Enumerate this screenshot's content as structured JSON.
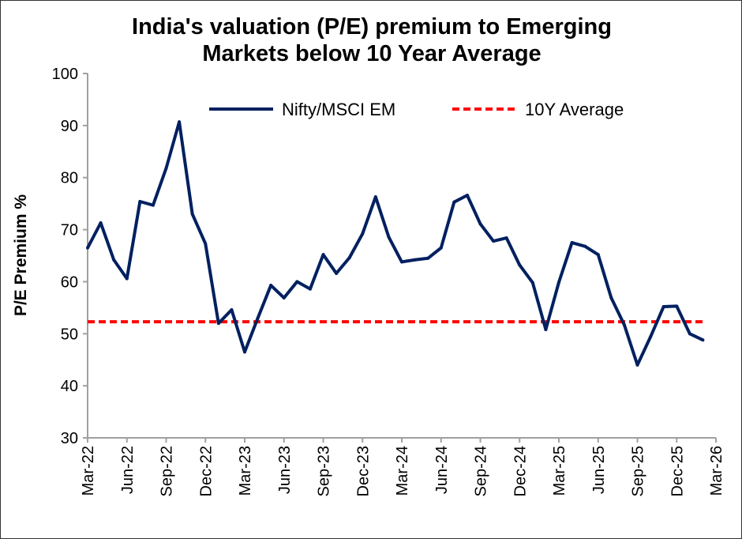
{
  "chart_data": {
    "type": "line",
    "title_lines": [
      "India's valuation (P/E) premium to Emerging",
      "Markets below 10 Year Average"
    ],
    "xlabel": "",
    "ylabel": "P/E Premium %",
    "ylim": [
      30,
      100
    ],
    "yticks": [
      30,
      40,
      50,
      60,
      70,
      80,
      90,
      100
    ],
    "xtick_labels": [
      "Mar-22",
      "Jun-22",
      "Sep-22",
      "Dec-22",
      "Mar-23",
      "Jun-23",
      "Sep-23",
      "Dec-23",
      "Mar-24",
      "Jun-24",
      "Sep-24",
      "Dec-24",
      "Mar-25",
      "Jun-25",
      "Sep-25",
      "Dec-25",
      "Mar-26"
    ],
    "grid": false,
    "legend_position": "top",
    "x": [
      "Mar-22",
      "Apr-22",
      "May-22",
      "Jun-22",
      "Jul-22",
      "Aug-22",
      "Sep-22",
      "Oct-22",
      "Nov-22",
      "Dec-22",
      "Jan-23",
      "Feb-23",
      "Mar-23",
      "Apr-23",
      "May-23",
      "Jun-23",
      "Jul-23",
      "Aug-23",
      "Sep-23",
      "Oct-23",
      "Nov-23",
      "Dec-23",
      "Jan-24",
      "Feb-24",
      "Mar-24",
      "Apr-24",
      "May-24",
      "Jun-24",
      "Jul-24",
      "Aug-24",
      "Sep-24",
      "Oct-24",
      "Nov-24",
      "Dec-24",
      "Jan-25",
      "Feb-25",
      "Mar-25",
      "Apr-25",
      "May-25",
      "Jun-25",
      "Jul-25",
      "Aug-25",
      "Sep-25",
      "Oct-25",
      "Nov-25",
      "Dec-25",
      "Jan-26",
      "Feb-26"
    ],
    "series": [
      {
        "name": "Nifty/MSCI EM",
        "color": "#002060",
        "style": "solid",
        "values": [
          66.5,
          71.3,
          64.2,
          60.6,
          75.4,
          74.7,
          81.8,
          90.7,
          73.0,
          67.3,
          52.0,
          54.6,
          46.5,
          53.0,
          59.3,
          56.9,
          60.0,
          58.6,
          65.2,
          61.6,
          64.6,
          69.2,
          76.3,
          68.6,
          63.8,
          64.2,
          64.5,
          66.5,
          75.3,
          76.6,
          71.1,
          67.8,
          68.4,
          63.2,
          59.8,
          50.8,
          59.9,
          67.5,
          66.8,
          65.2,
          56.9,
          51.7,
          44.0,
          49.4,
          55.2,
          55.3,
          50.0,
          48.8
        ]
      },
      {
        "name": "10Y Average",
        "color": "#FF0000",
        "style": "dashed",
        "value": 52.3
      }
    ]
  }
}
